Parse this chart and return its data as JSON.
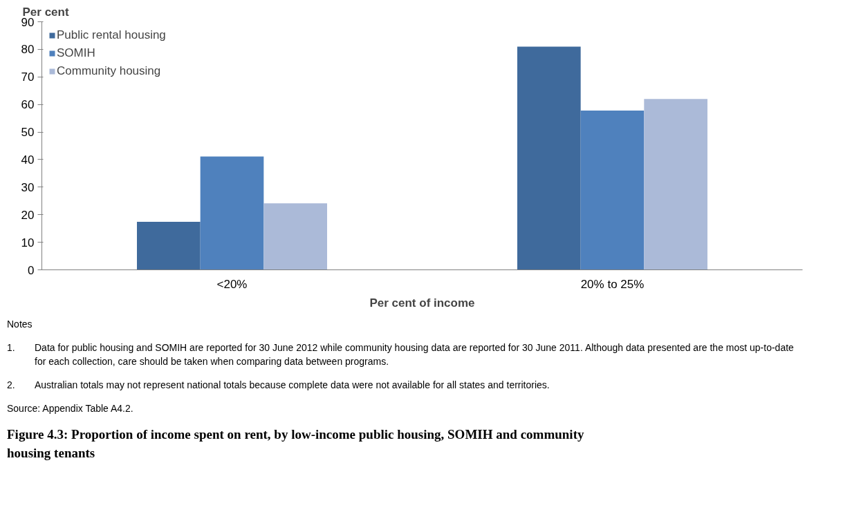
{
  "chart_data": {
    "type": "bar",
    "title": "Figure 4.3: Proportion of income spent on rent, by low-income public housing, SOMIH and community housing tenants",
    "xlabel": "Per cent of income",
    "ylabel": "Per cent",
    "categories": [
      "<20%",
      "20% to 25%"
    ],
    "series": [
      {
        "name": "Public rental housing",
        "color": "#3f6a9c",
        "values": [
          17.4,
          81.0
        ]
      },
      {
        "name": "SOMIH",
        "color": "#4f81bd",
        "values": [
          41.1,
          57.8
        ]
      },
      {
        "name": "Community housing",
        "color": "#abbad8",
        "values": [
          24.1,
          62.0
        ]
      }
    ],
    "ylim": [
      0,
      90
    ],
    "yticks": [
      0,
      10,
      20,
      30,
      40,
      50,
      60,
      70,
      80,
      90
    ],
    "grid": false,
    "legend": "top left",
    "annotations": [
      "Notes",
      "1.\tData for public housing and SOMIH are reported for 30 June 2012 while community housing data are reported for 30 June 2011. Although data presented are the most up-to-date for each collection, care should be taken when comparing data between programs.",
      "2.\tAustralian totals may not represent national totals because complete data were not available for all states and territories.",
      "Source: Appendix Table A4.2."
    ]
  }
}
